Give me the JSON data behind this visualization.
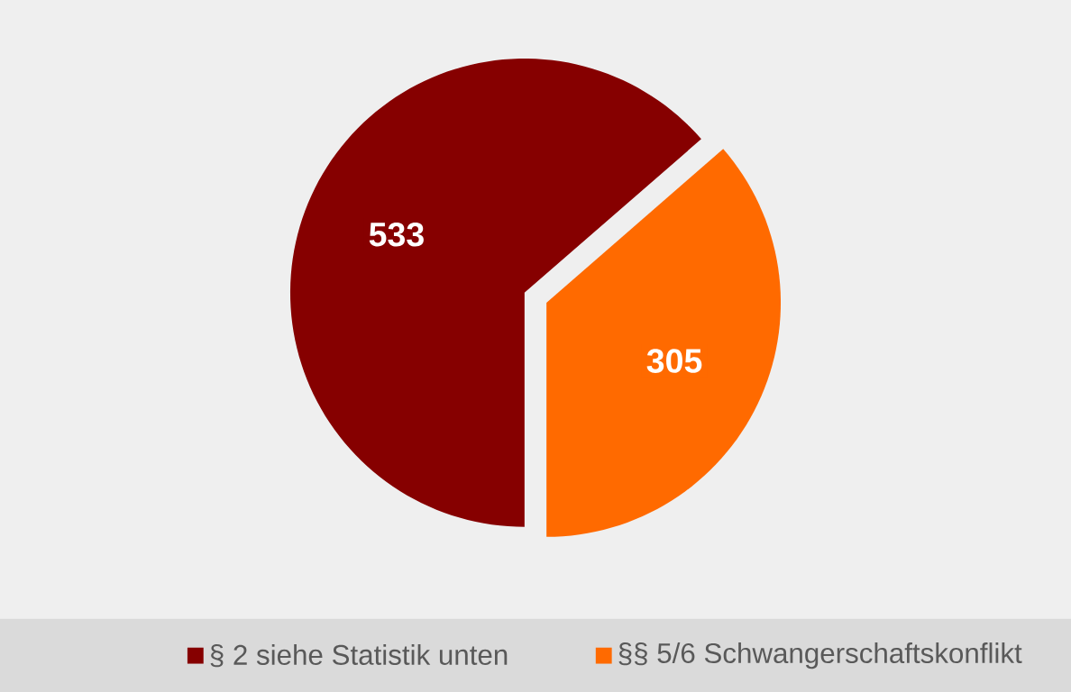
{
  "chart_data": {
    "type": "pie",
    "categories": [
      "§ 2 siehe Statistik unten",
      "§§ 5/6 Schwangerschaftskonflikt"
    ],
    "values": [
      533,
      305
    ],
    "colors": [
      "#860000",
      "#ff6a00"
    ],
    "value_labels": [
      "533",
      "305"
    ],
    "legend": "bottom"
  }
}
